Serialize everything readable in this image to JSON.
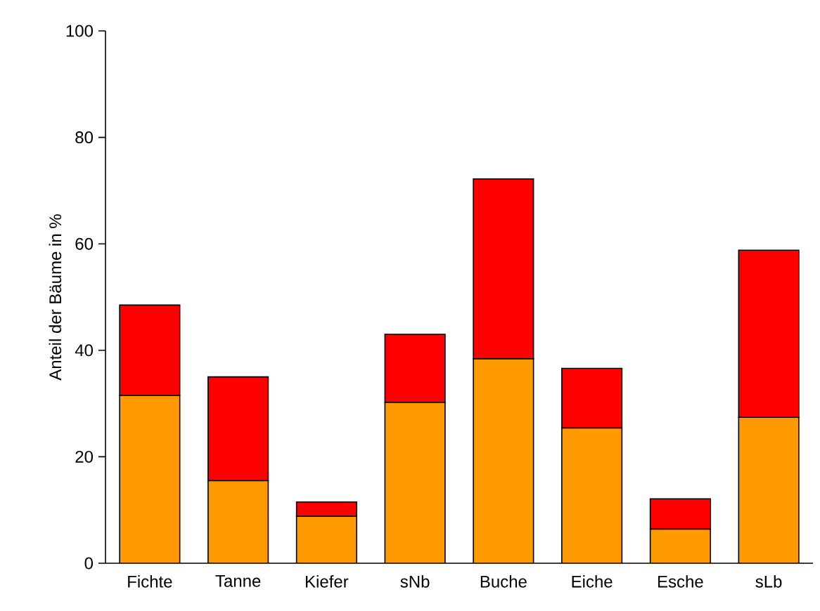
{
  "chart_data": {
    "type": "bar",
    "stacked": true,
    "ylabel": "Anteil der Bäume in %",
    "categories": [
      "Fichte",
      "Tanne",
      "Kiefer",
      "sNb",
      "Buche",
      "Eiche",
      "Esche",
      "sLb"
    ],
    "series": [
      {
        "color": "#ff9900",
        "values": [
          31.5,
          15.5,
          8.8,
          30.2,
          38.4,
          25.4,
          6.4,
          27.4
        ]
      },
      {
        "color": "#ff0000",
        "values": [
          17.0,
          19.5,
          2.7,
          12.8,
          33.8,
          11.2,
          5.7,
          31.4
        ]
      }
    ],
    "ylim": [
      0,
      100
    ],
    "yticks": [
      0,
      20,
      40,
      60,
      80,
      100
    ]
  }
}
